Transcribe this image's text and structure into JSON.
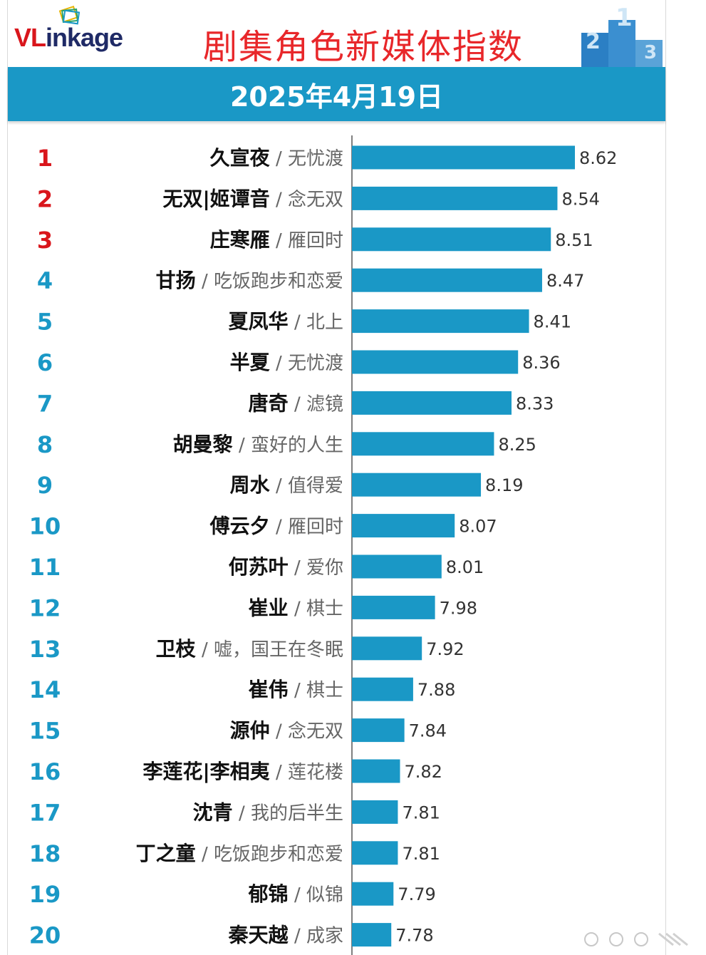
{
  "header": {
    "logo_text_a": "VL",
    "logo_text_b": "ink",
    "logo_text_c": "age",
    "title": "剧集角色新媒体指数",
    "date": "2025年4月19日"
  },
  "colors": {
    "bar": "#1a98c6",
    "title": "#e8272a",
    "rank_top": "#d9161c",
    "rank_rest": "#1a98c6",
    "band": "#1a98c6"
  },
  "chart_data": {
    "type": "bar",
    "orientation": "horizontal",
    "title": "剧集角色新媒体指数",
    "subtitle": "2025年4月19日",
    "xlim": [
      7.6,
      8.9
    ],
    "rows": [
      {
        "rank": "1",
        "name": "久宣夜",
        "show": "无忧渡",
        "value": 8.62
      },
      {
        "rank": "2",
        "name": "无双|姬谭音",
        "show": "念无双",
        "value": 8.54
      },
      {
        "rank": "3",
        "name": "庄寒雁",
        "show": "雁回时",
        "value": 8.51
      },
      {
        "rank": "4",
        "name": "甘扬",
        "show": "吃饭跑步和恋爱",
        "value": 8.47
      },
      {
        "rank": "5",
        "name": "夏凤华",
        "show": "北上",
        "value": 8.41
      },
      {
        "rank": "6",
        "name": "半夏",
        "show": "无忧渡",
        "value": 8.36
      },
      {
        "rank": "7",
        "name": "唐奇",
        "show": "滤镜",
        "value": 8.33
      },
      {
        "rank": "8",
        "name": "胡曼黎",
        "show": "蛮好的人生",
        "value": 8.25
      },
      {
        "rank": "9",
        "name": "周水",
        "show": "值得爱",
        "value": 8.19
      },
      {
        "rank": "10",
        "name": "傅云夕",
        "show": "雁回时",
        "value": 8.07
      },
      {
        "rank": "11",
        "name": "何苏叶",
        "show": "爱你",
        "value": 8.01
      },
      {
        "rank": "12",
        "name": "崔业",
        "show": "棋士",
        "value": 7.98
      },
      {
        "rank": "13",
        "name": "卫枝",
        "show": "嘘，国王在冬眠",
        "value": 7.92
      },
      {
        "rank": "14",
        "name": "崔伟",
        "show": "棋士",
        "value": 7.88
      },
      {
        "rank": "15",
        "name": "源仲",
        "show": "念无双",
        "value": 7.84
      },
      {
        "rank": "16",
        "name": "李莲花|李相夷",
        "show": "莲花楼",
        "value": 7.82
      },
      {
        "rank": "17",
        "name": "沈青",
        "show": "我的后半生",
        "value": 7.81
      },
      {
        "rank": "18",
        "name": "丁之童",
        "show": "吃饭跑步和恋爱",
        "value": 7.81
      },
      {
        "rank": "19",
        "name": "郁锦",
        "show": "似锦",
        "value": 7.79
      },
      {
        "rank": "20",
        "name": "秦天越",
        "show": "成家",
        "value": 7.78
      }
    ],
    "separator": " / "
  }
}
